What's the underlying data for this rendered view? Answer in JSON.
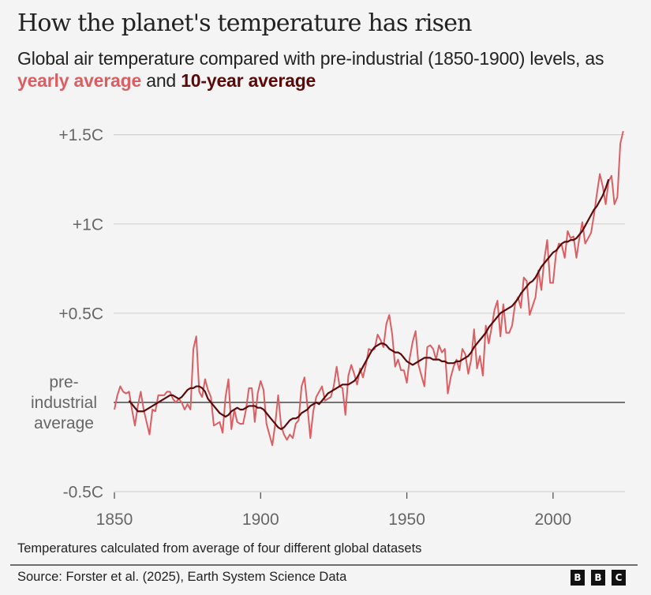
{
  "header": {
    "title": "How the planet's temperature has risen",
    "subtitle_part1": "Global air temperature compared with pre-industrial (1850-1900) levels, as ",
    "subtitle_yearly": "yearly average",
    "subtitle_and": " and ",
    "subtitle_decade": "10-year average"
  },
  "colors": {
    "yearly": "#db5e62",
    "ten_year": "#5b0a0a",
    "baseline": "#555555",
    "grid": "#d4d4d4"
  },
  "footer": {
    "note": "Temperatures calculated from average of four different global datasets",
    "source": "Source: Forster et al. (2025), Earth System Science Data",
    "logo_letters": [
      "B",
      "B",
      "C"
    ]
  },
  "chart_data": {
    "type": "line",
    "title": "How the planet's temperature has risen",
    "subtitle": "Global air temperature compared with pre-industrial (1850-1900) levels, as yearly average and 10-year average",
    "xlabel": "",
    "ylabel": "",
    "xlim": [
      1850,
      2024
    ],
    "ylim": [
      -0.5,
      1.5
    ],
    "grid": true,
    "xticks": [
      1850,
      1900,
      1950,
      2000
    ],
    "xtick_labels": [
      "1850",
      "1900",
      "1950",
      "2000"
    ],
    "yticks": [
      -0.5,
      0,
      0.5,
      1,
      1.5
    ],
    "ytick_labels": [
      "-0.5C",
      "pre-\nindustrial\naverage",
      "+0.5C",
      "+1C",
      "+1.5C"
    ],
    "legend": "inline-subtitle",
    "series": [
      {
        "name": "yearly average",
        "x_start": 1850,
        "values": [
          -0.04,
          0.04,
          0.09,
          0.06,
          0.05,
          0.06,
          -0.04,
          -0.13,
          -0.02,
          0.06,
          -0.04,
          -0.11,
          -0.18,
          -0.04,
          -0.05,
          0.04,
          0.04,
          0.04,
          0.06,
          0.06,
          0.02,
          0.0,
          0.02,
          0.0,
          -0.04,
          -0.01,
          -0.04,
          0.3,
          0.37,
          0.06,
          0.03,
          0.13,
          0.07,
          0.03,
          -0.13,
          -0.12,
          -0.11,
          -0.17,
          0.03,
          0.13,
          -0.15,
          -0.04,
          -0.11,
          -0.12,
          -0.12,
          -0.04,
          0.08,
          0.08,
          -0.11,
          0.05,
          0.12,
          0.07,
          -0.12,
          -0.18,
          -0.24,
          -0.12,
          0.04,
          -0.13,
          -0.18,
          -0.21,
          -0.18,
          -0.2,
          -0.12,
          -0.1,
          0.09,
          0.14,
          -0.02,
          -0.2,
          -0.05,
          0.03,
          0.06,
          0.09,
          0.01,
          0.02,
          0.03,
          0.09,
          0.2,
          0.09,
          0.08,
          -0.07,
          0.15,
          0.21,
          0.16,
          0.1,
          0.19,
          0.14,
          0.21,
          0.3,
          0.29,
          0.3,
          0.38,
          0.35,
          0.31,
          0.44,
          0.49,
          0.38,
          0.2,
          0.24,
          0.18,
          0.18,
          0.11,
          0.25,
          0.34,
          0.4,
          0.21,
          0.15,
          0.09,
          0.31,
          0.32,
          0.3,
          0.24,
          0.32,
          0.28,
          0.3,
          0.05,
          0.14,
          0.2,
          0.24,
          0.18,
          0.3,
          0.27,
          0.16,
          0.24,
          0.41,
          0.19,
          0.26,
          0.15,
          0.43,
          0.33,
          0.42,
          0.52,
          0.57,
          0.37,
          0.55,
          0.39,
          0.39,
          0.43,
          0.55,
          0.59,
          0.53,
          0.7,
          0.68,
          0.49,
          0.54,
          0.59,
          0.74,
          0.63,
          0.8,
          0.91,
          0.67,
          0.67,
          0.83,
          0.89,
          0.88,
          0.81,
          0.96,
          0.92,
          0.93,
          0.81,
          0.92,
          1.01,
          0.89,
          0.92,
          0.95,
          1.05,
          1.17,
          1.28,
          1.21,
          1.11,
          1.24,
          1.27,
          1.11,
          1.15,
          1.45,
          1.52
        ]
      },
      {
        "name": "10-year average",
        "x_start": 1855,
        "values": [
          0.01,
          -0.01,
          -0.03,
          -0.05,
          -0.05,
          -0.05,
          -0.04,
          -0.03,
          -0.02,
          -0.01,
          0.0,
          0.01,
          0.02,
          0.03,
          0.04,
          0.04,
          0.03,
          0.02,
          0.03,
          0.05,
          0.07,
          0.08,
          0.08,
          0.09,
          0.09,
          0.08,
          0.06,
          0.02,
          0.0,
          -0.02,
          -0.04,
          -0.06,
          -0.07,
          -0.08,
          -0.07,
          -0.05,
          -0.04,
          -0.03,
          -0.04,
          -0.04,
          -0.03,
          -0.02,
          -0.02,
          -0.02,
          -0.03,
          -0.03,
          -0.04,
          -0.06,
          -0.08,
          -0.1,
          -0.12,
          -0.14,
          -0.15,
          -0.14,
          -0.12,
          -0.1,
          -0.09,
          -0.09,
          -0.08,
          -0.06,
          -0.05,
          -0.04,
          -0.02,
          -0.01,
          0.0,
          -0.01,
          0.01,
          0.03,
          0.05,
          0.06,
          0.07,
          0.08,
          0.09,
          0.1,
          0.1,
          0.1,
          0.11,
          0.12,
          0.14,
          0.17,
          0.2,
          0.23,
          0.26,
          0.29,
          0.31,
          0.32,
          0.33,
          0.33,
          0.32,
          0.3,
          0.29,
          0.28,
          0.28,
          0.27,
          0.25,
          0.23,
          0.22,
          0.21,
          0.22,
          0.23,
          0.24,
          0.25,
          0.25,
          0.25,
          0.24,
          0.24,
          0.24,
          0.23,
          0.23,
          0.22,
          0.22,
          0.22,
          0.23,
          0.23,
          0.24,
          0.25,
          0.26,
          0.28,
          0.31,
          0.33,
          0.35,
          0.37,
          0.39,
          0.42,
          0.44,
          0.46,
          0.48,
          0.5,
          0.51,
          0.52,
          0.53,
          0.54,
          0.56,
          0.58,
          0.61,
          0.63,
          0.65,
          0.67,
          0.68,
          0.7,
          0.73,
          0.76,
          0.78,
          0.8,
          0.82,
          0.84,
          0.85,
          0.87,
          0.89,
          0.9,
          0.9,
          0.91,
          0.91,
          0.92,
          0.94,
          0.96,
          0.99,
          1.02,
          1.05,
          1.08,
          1.1,
          1.13,
          1.16,
          1.2,
          1.25
        ]
      }
    ],
    "footnote": "Temperatures calculated from average of four different global datasets",
    "source": "Source: Forster et al. (2025), Earth System Science Data"
  }
}
